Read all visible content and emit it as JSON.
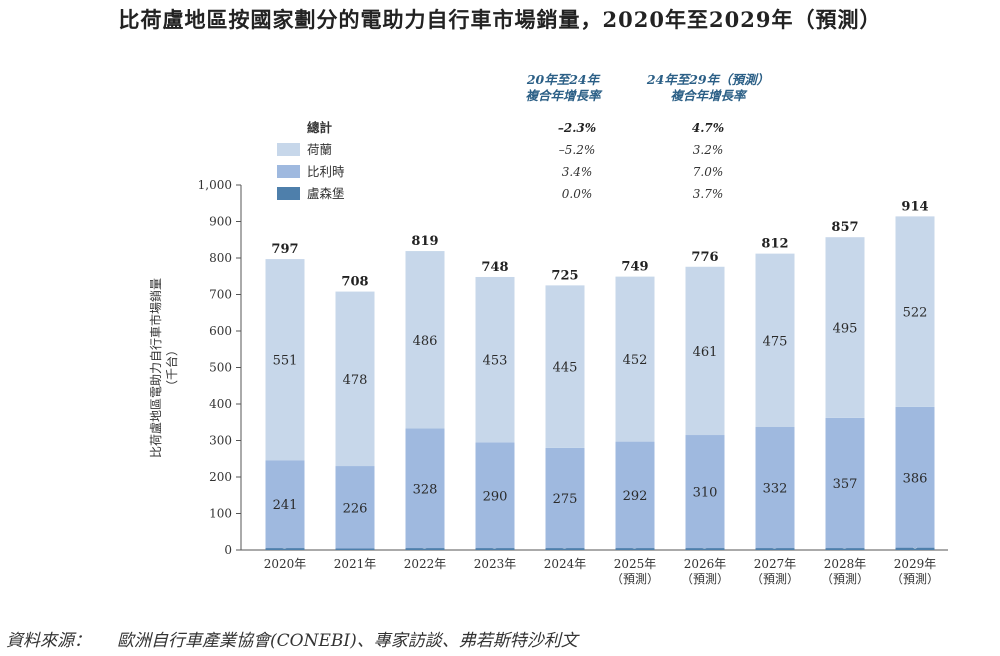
{
  "title": "比荷盧地區按國家劃分的電助力自行車市場銷量，2020年至2029年（預測）",
  "source": {
    "label": "資料來源：",
    "text": "歐洲自行車產業協會(CONEBI)、專家訪談、弗若斯特沙利文"
  },
  "chart_data": {
    "type": "bar",
    "stacked": true,
    "categories": [
      [
        "2020年"
      ],
      [
        "2021年"
      ],
      [
        "2022年"
      ],
      [
        "2023年"
      ],
      [
        "2024年"
      ],
      [
        "2025年",
        "（預測）"
      ],
      [
        "2026年",
        "（預測）"
      ],
      [
        "2027年",
        "（預測）"
      ],
      [
        "2028年",
        "（預測）"
      ],
      [
        "2029年",
        "（預測）"
      ]
    ],
    "series": [
      {
        "name": "盧森堡",
        "color": "#4e7fab",
        "values": [
          5,
          4,
          5,
          5,
          5,
          5,
          5,
          5,
          5,
          6
        ]
      },
      {
        "name": "比利時",
        "color": "#9fb9df",
        "values": [
          241,
          226,
          328,
          290,
          275,
          292,
          310,
          332,
          357,
          386
        ]
      },
      {
        "name": "荷蘭",
        "color": "#c7d7ea",
        "values": [
          551,
          478,
          486,
          453,
          445,
          452,
          461,
          475,
          495,
          522
        ]
      }
    ],
    "totals": [
      797,
      708,
      819,
      748,
      725,
      749,
      776,
      812,
      857,
      914
    ],
    "ylabel": [
      "比荷盧地區電助力自行車市場銷量",
      "（千台）"
    ],
    "yticks": [
      "0",
      "100",
      "200",
      "300",
      "400",
      "500",
      "600",
      "700",
      "800",
      "900",
      "1,000"
    ],
    "ylim": [
      0,
      1000
    ],
    "legend": {
      "total_label": "總計",
      "cagr_headers": [
        [
          "20年至24年",
          "複合年增長率"
        ],
        [
          "24年至29年（預測）",
          "複合年增長率"
        ]
      ],
      "rows": [
        {
          "name": "總計",
          "cagr1": "–2.3%",
          "cagr2": "4.7%"
        },
        {
          "name": "荷蘭",
          "color": "#c7d7ea",
          "cagr1": "–5.2%",
          "cagr2": "3.2%"
        },
        {
          "name": "比利時",
          "color": "#9fb9df",
          "cagr1": "3.4%",
          "cagr2": "7.0%"
        },
        {
          "name": "盧森堡",
          "color": "#4e7fab",
          "cagr1": "0.0%",
          "cagr2": "3.7%"
        }
      ]
    }
  }
}
